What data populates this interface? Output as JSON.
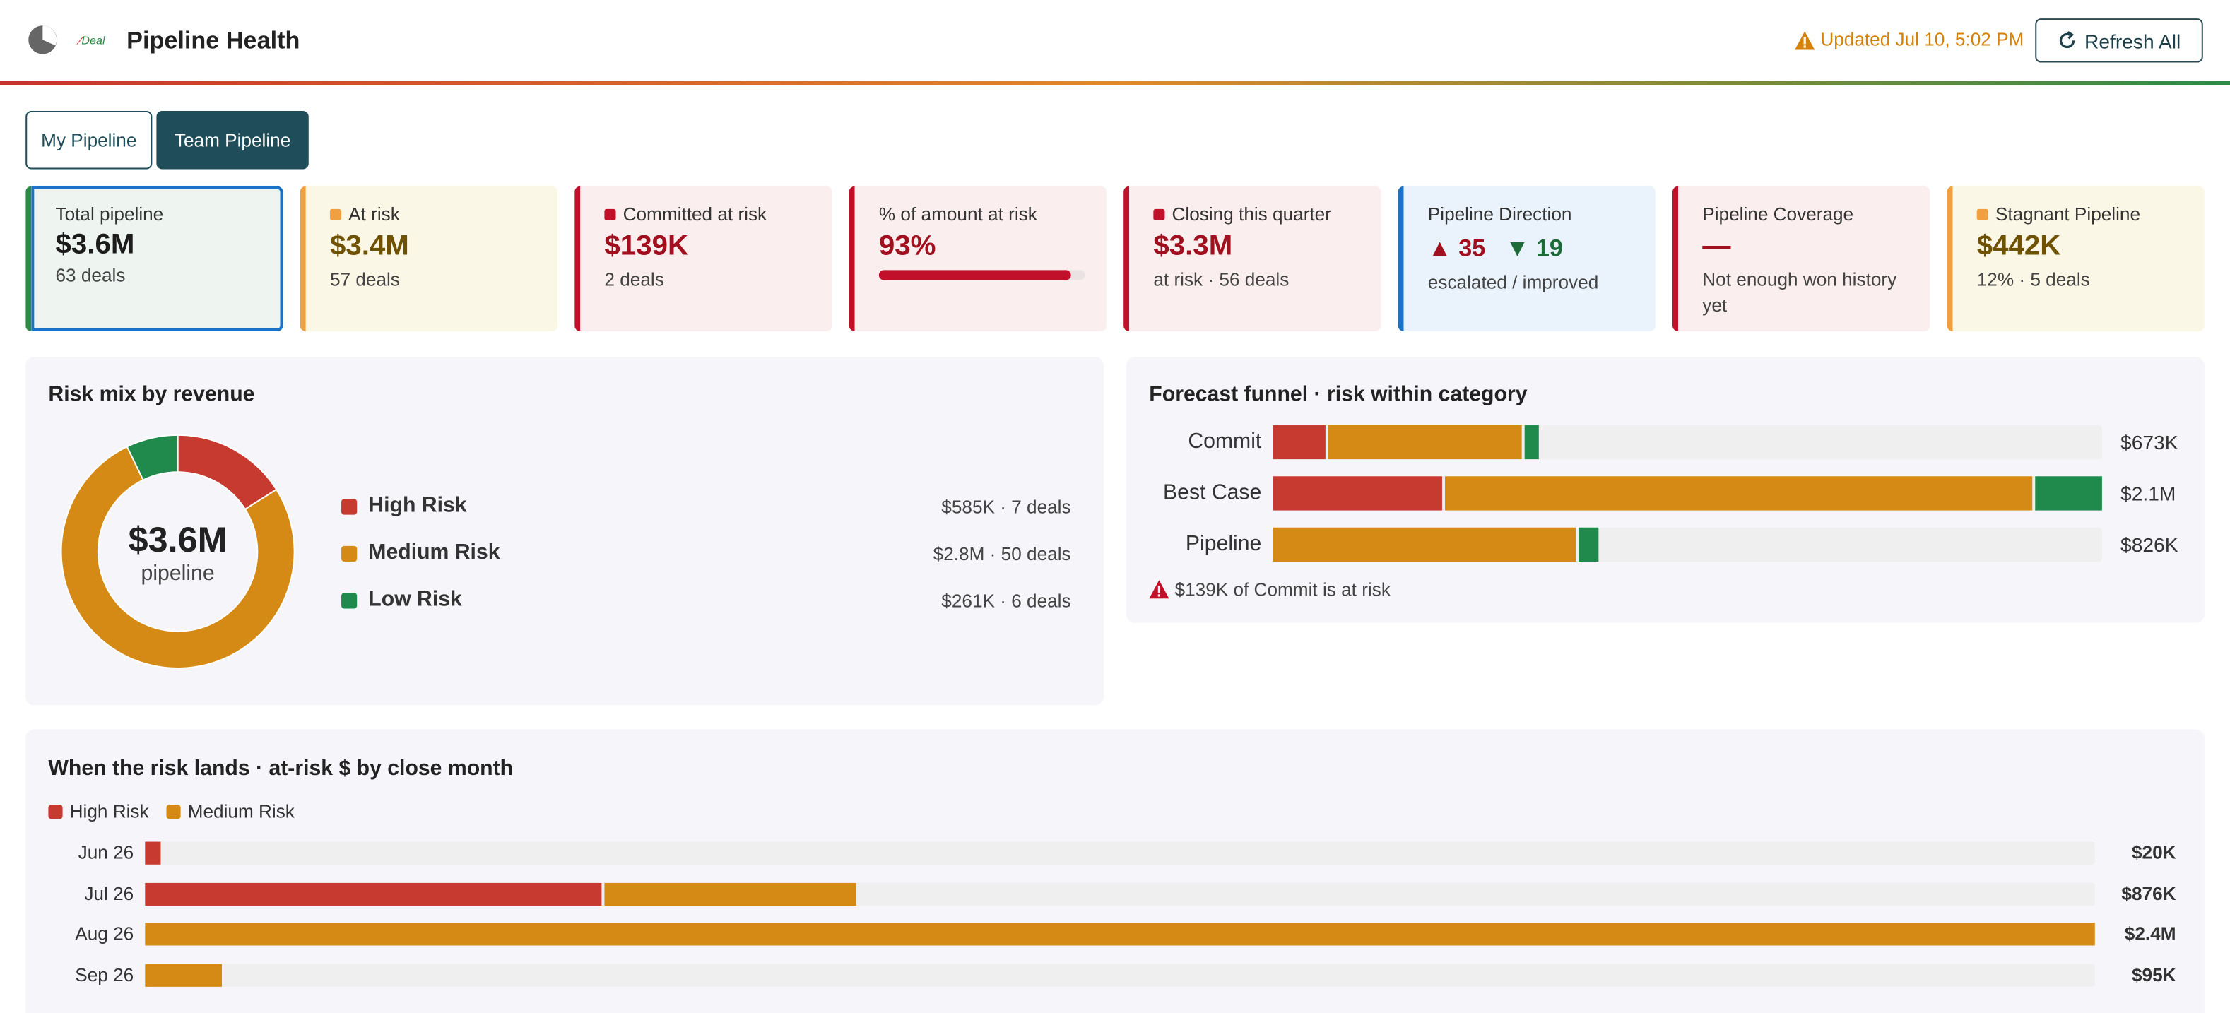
{
  "header": {
    "title": "Pipeline Health",
    "logo_text": "Deal",
    "updated": "Updated Jul 10, 5:02 PM",
    "button": "Refresh All"
  },
  "tabs": [
    "My Pipeline",
    "Team Pipeline"
  ],
  "kpis": [
    {
      "label": "Total pipeline",
      "value": "$3.6M",
      "sub": "63 deals"
    },
    {
      "label": "At risk",
      "value": "$3.4M",
      "sub": "57 deals"
    },
    {
      "label": "Committed at risk",
      "value": "$139K",
      "sub": "2 deals"
    },
    {
      "label": "% of amount at risk",
      "value": 93,
      "value_label": "93%"
    },
    {
      "label": "Closing this quarter",
      "value": "$3.3M",
      "sub": "at risk · 56 deals"
    },
    {
      "label": "Pipeline Direction",
      "up": 35,
      "down": 19,
      "sub": "escalated / improved"
    },
    {
      "label": "Pipeline Coverage",
      "value": "—",
      "sub": "Not enough won history yet"
    },
    {
      "label": "Stagnant Pipeline",
      "value": "$442K",
      "sub": "12% · 5 deals"
    }
  ],
  "risk_mix": {
    "type": "pie",
    "title": "Risk mix by revenue",
    "center_value": "$3.6M",
    "center_label": "pipeline",
    "categories": [
      "High Risk",
      "Medium Risk",
      "Low Risk"
    ],
    "values": [
      585,
      2800,
      261
    ],
    "value_labels": [
      "$585K · 7 deals",
      "$2.8M · 50 deals",
      "$261K · 6 deals"
    ],
    "colors": [
      "#c63a2f",
      "#d68a16",
      "#1f8a4c"
    ]
  },
  "funnel": {
    "type": "bar",
    "title": "Forecast funnel · risk within category",
    "categories": [
      "Commit",
      "Best Case",
      "Pipeline"
    ],
    "series": [
      {
        "color": "#c63a2f",
        "values": [
          139,
          436,
          null
        ]
      },
      {
        "color": "#d68a16",
        "values": [
          500,
          1495,
          776
        ]
      },
      {
        "color": "#1f8a4c",
        "values": [
          34,
          169,
          50
        ]
      }
    ],
    "xlim": [
      0,
      2100
    ],
    "value_labels": [
      "$673K",
      "$2.1M",
      "$826K"
    ],
    "note": "$139K of Commit is at risk"
  },
  "months": {
    "type": "bar",
    "title": "When the risk lands · at-risk $ by close month",
    "categories": [
      "Jun 26",
      "Jul 26",
      "Aug 26",
      "Sep 26"
    ],
    "series": [
      {
        "name": "High Risk",
        "color": "#c63a2f",
        "values": [
          20,
          565,
          null,
          null
        ]
      },
      {
        "name": "Medium Risk",
        "color": "#d68a16",
        "values": [
          null,
          311,
          2400,
          95
        ]
      }
    ],
    "xlim": [
      0,
      2400
    ],
    "value_labels": [
      "$20K",
      "$876K",
      "$2.4M",
      "$95K"
    ]
  }
}
